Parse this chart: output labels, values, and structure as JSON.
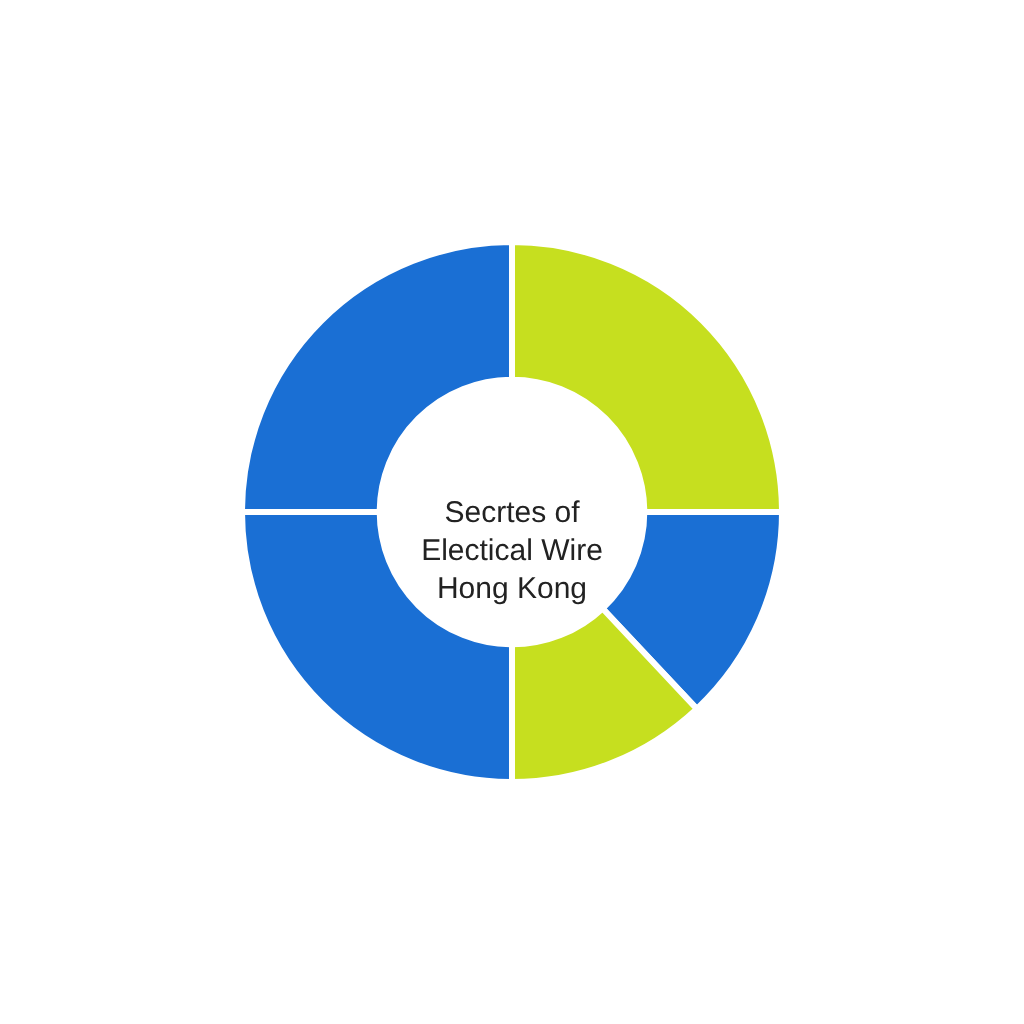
{
  "chart_data": {
    "type": "donut",
    "title": "Secrtes of Electical Wire Hong Kong",
    "categories": [
      null,
      null,
      null,
      null,
      null
    ],
    "values": [
      25,
      13,
      12,
      25,
      25
    ],
    "colors": [
      "#c6df1f",
      "#1a6fd4",
      "#c6df1f",
      "#1a6fd4",
      "#1a6fd4"
    ]
  }
}
